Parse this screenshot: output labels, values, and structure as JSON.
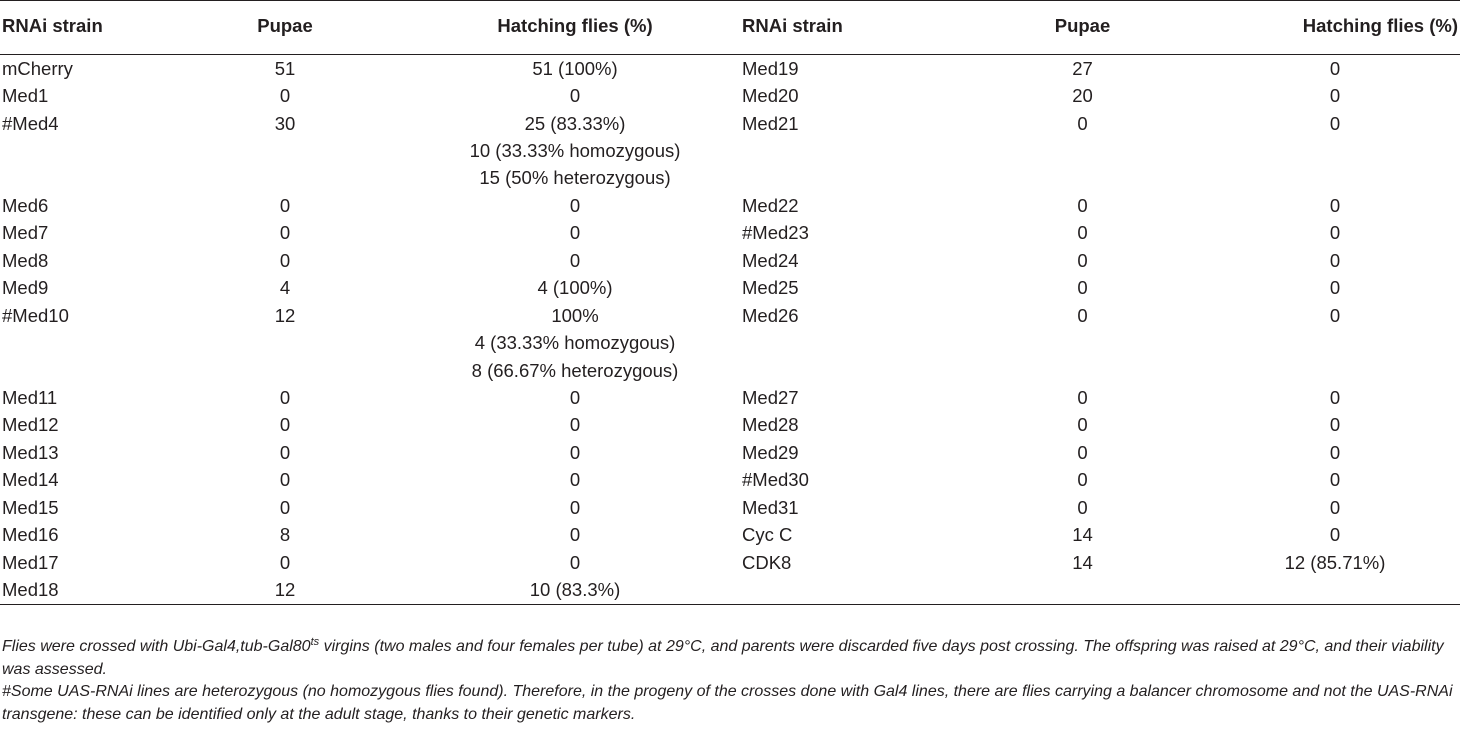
{
  "table": {
    "headers": [
      "RNAi strain",
      "Pupae",
      "Hatching flies (%)",
      "RNAi strain",
      "Pupae",
      "Hatching flies (%)"
    ],
    "rows": [
      [
        "mCherry",
        "51",
        "51 (100%)",
        "Med19",
        "27",
        "0"
      ],
      [
        "Med1",
        "0",
        "0",
        "Med20",
        "20",
        "0"
      ],
      [
        "#Med4",
        "30",
        "25 (83.33%)",
        "Med21",
        "0",
        "0"
      ],
      [
        "",
        "",
        "10 (33.33% homozygous)",
        "",
        "",
        ""
      ],
      [
        "",
        "",
        "15 (50% heterozygous)",
        "",
        "",
        ""
      ],
      [
        "Med6",
        "0",
        "0",
        "Med22",
        "0",
        "0"
      ],
      [
        "Med7",
        "0",
        "0",
        "#Med23",
        "0",
        "0"
      ],
      [
        "Med8",
        "0",
        "0",
        "Med24",
        "0",
        "0"
      ],
      [
        "Med9",
        "4",
        "4 (100%)",
        "Med25",
        "0",
        "0"
      ],
      [
        "#Med10",
        "12",
        "100%",
        "Med26",
        "0",
        "0"
      ],
      [
        "",
        "",
        "4 (33.33% homozygous)",
        "",
        "",
        ""
      ],
      [
        "",
        "",
        "8 (66.67% heterozygous)",
        "",
        "",
        ""
      ],
      [
        "Med11",
        "0",
        "0",
        "Med27",
        "0",
        "0"
      ],
      [
        "Med12",
        "0",
        "0",
        "Med28",
        "0",
        "0"
      ],
      [
        "Med13",
        "0",
        "0",
        "Med29",
        "0",
        "0"
      ],
      [
        "Med14",
        "0",
        "0",
        "#Med30",
        "0",
        "0"
      ],
      [
        "Med15",
        "0",
        "0",
        "Med31",
        "0",
        "0"
      ],
      [
        "Med16",
        "8",
        "0",
        "Cyc C",
        "14",
        "0"
      ],
      [
        "Med17",
        "0",
        "0",
        "CDK8",
        "14",
        "12 (85.71%)"
      ],
      [
        "Med18",
        "12",
        "10 (83.3%)",
        "",
        "",
        ""
      ]
    ]
  },
  "footnotes": {
    "note1_a": "Flies were crossed with ",
    "note1_gal4": "Ubi-Gal4,tub-Gal80",
    "note1_sup": "ts",
    "note1_b": " virgins (two males and four females per tube) at 29°C, and parents were discarded five days post crossing. The offspring was raised at 29°C, and their viability was assessed.",
    "note2": "#Some UAS-RNAi lines are heterozygous (no homozygous flies found). Therefore, in the progeny of the crosses done with Gal4 lines, there are flies carrying a balancer chromosome and not the UAS-RNAi transgene: these can be identified only at the adult stage, thanks to their genetic markers."
  }
}
